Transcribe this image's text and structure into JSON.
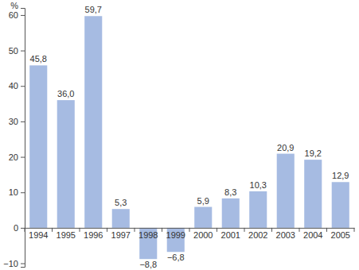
{
  "chart_data": {
    "type": "bar",
    "y_label": "%",
    "categories": [
      "1994",
      "1995",
      "1996",
      "1997",
      "1998",
      "1999",
      "2000",
      "2001",
      "2002",
      "2003",
      "2004",
      "2005"
    ],
    "values": [
      45.8,
      36.0,
      59.7,
      5.3,
      -8.8,
      -6.8,
      5.9,
      8.3,
      10.3,
      20.9,
      19.2,
      12.9
    ],
    "value_labels": [
      "45,8",
      "36,0",
      "59,7",
      "5,3",
      "−8,8",
      "−6,8",
      "5,9",
      "8,3",
      "10,3",
      "20,9",
      "19,2",
      "12,9"
    ],
    "data_labels": true,
    "color": "#a6bbe2",
    "ylim": [
      -11,
      62
    ],
    "yticks": [
      {
        "value": -10,
        "label": "−10"
      },
      0,
      10,
      20,
      30,
      40,
      50,
      60
    ],
    "grid": false
  }
}
